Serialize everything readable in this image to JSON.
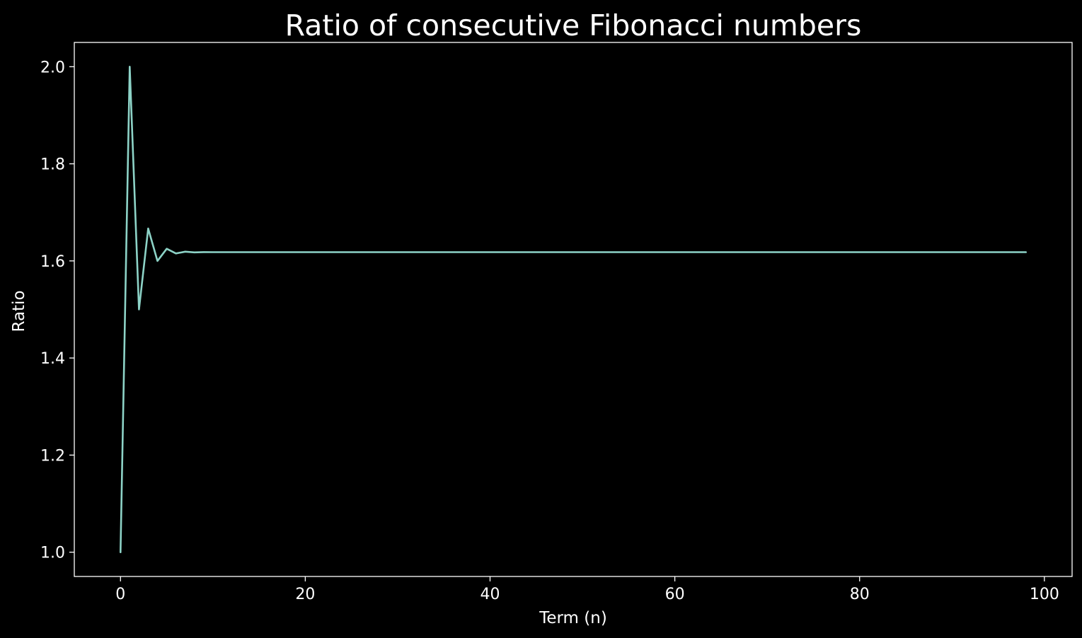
{
  "chart_data": {
    "type": "line",
    "title": "Ratio of consecutive Fibonacci numbers",
    "xlabel": "Term (n)",
    "ylabel": "Ratio",
    "xlim": [
      -5,
      103
    ],
    "ylim": [
      0.95,
      2.05
    ],
    "xticks": [
      0,
      20,
      40,
      60,
      80,
      100
    ],
    "yticks": [
      1.0,
      1.2,
      1.4,
      1.6,
      1.8,
      2.0
    ],
    "xtick_labels": [
      "0",
      "20",
      "40",
      "60",
      "80",
      "100"
    ],
    "ytick_labels": [
      "1.0",
      "1.2",
      "1.4",
      "1.6",
      "1.8",
      "2.0"
    ],
    "grid": false,
    "line_color": "#8dd3c7",
    "background": "#000000",
    "x": [
      0,
      1,
      2,
      3,
      4,
      5,
      6,
      7,
      8,
      9,
      10,
      15,
      20,
      30,
      40,
      50,
      60,
      70,
      80,
      90,
      98
    ],
    "y": [
      1.0,
      2.0,
      1.5,
      1.6667,
      1.6,
      1.625,
      1.6154,
      1.619,
      1.6176,
      1.6182,
      1.618,
      1.618,
      1.618,
      1.618,
      1.618,
      1.618,
      1.618,
      1.618,
      1.618,
      1.618,
      1.618
    ]
  }
}
